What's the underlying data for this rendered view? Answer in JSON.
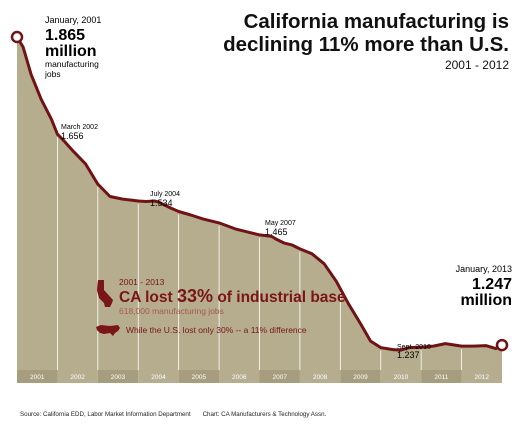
{
  "title_line1": "California manufacturing is",
  "title_line2": "declining 11% more than U.S.",
  "subtitle": "2001 - 2012",
  "source": "Source: California EDD, Labor Market Information Department",
  "credit": "Chart: CA Manufacturers & Technology Assn.",
  "colors": {
    "area_fill": "#b5ad8e",
    "line": "#701316",
    "band_dark": "#a59d7e",
    "highlight": "#7a1518",
    "highlight_soft": "#a85a4c"
  },
  "callouts": {
    "start": {
      "date": "January, 2001",
      "value": "1.865",
      "unit": "million",
      "note_line1": "manufacturing",
      "note_line2": "jobs"
    },
    "mar2002": {
      "date": "March 2002",
      "value": "1.656"
    },
    "jul2004": {
      "date": "July 2004",
      "value": "1.534"
    },
    "may2007": {
      "date": "May 2007",
      "value": "1.465"
    },
    "sep2010": {
      "date": "Sept. 2010",
      "value": "1.237"
    },
    "end": {
      "date": "January, 2013",
      "value": "1.247",
      "unit": "million"
    }
  },
  "ca_box": {
    "period": "2001 - 2013",
    "headline_pre": "CA lost ",
    "headline_pct": "33%",
    "headline_post": " of industrial base",
    "sub": "618,000 manufacturing jobs",
    "us": "While the U.S. lost only 30% -- a 11% difference",
    "state_icon": "california-state-icon",
    "us_icon": "us-map-icon"
  },
  "chart_data": {
    "type": "area",
    "title": "California manufacturing is declining 11% more than U.S.",
    "subtitle": "2001 - 2012",
    "categories": [
      "2001",
      "2002",
      "2003",
      "2004",
      "2005",
      "2006",
      "2007",
      "2008",
      "2009",
      "2010",
      "2011",
      "2012"
    ],
    "x": [
      2001.0,
      2001.15,
      2001.35,
      2001.6,
      2001.85,
      2002.0,
      2002.17,
      2002.4,
      2002.7,
      2003.0,
      2003.3,
      2003.6,
      2003.8,
      2004.0,
      2004.2,
      2004.4,
      2004.5,
      2004.6,
      2004.8,
      2005.0,
      2005.3,
      2005.6,
      2006.0,
      2006.4,
      2006.8,
      2007.0,
      2007.3,
      2007.4,
      2007.6,
      2007.8,
      2008.0,
      2008.3,
      2008.6,
      2008.9,
      2009.2,
      2009.5,
      2009.75,
      2010.0,
      2010.3,
      2010.5,
      2010.7,
      2011.0,
      2011.3,
      2011.6,
      2012.0,
      2012.3,
      2012.6,
      2012.85,
      2013.0
    ],
    "y": [
      1.865,
      1.845,
      1.79,
      1.74,
      1.7,
      1.67,
      1.656,
      1.635,
      1.61,
      1.57,
      1.545,
      1.54,
      1.538,
      1.536,
      1.535,
      1.536,
      1.534,
      1.53,
      1.522,
      1.515,
      1.508,
      1.5,
      1.492,
      1.48,
      1.472,
      1.468,
      1.465,
      1.46,
      1.452,
      1.448,
      1.44,
      1.43,
      1.41,
      1.375,
      1.33,
      1.29,
      1.255,
      1.242,
      1.238,
      1.237,
      1.242,
      1.243,
      1.245,
      1.25,
      1.245,
      1.245,
      1.246,
      1.24,
      1.247
    ],
    "ylabel": "",
    "xlabel": "",
    "ylim": [
      1.197,
      1.875
    ],
    "xlim": [
      2001.0,
      2013.0
    ],
    "unit": "million manufacturing jobs",
    "grid": false,
    "legend": "none"
  }
}
